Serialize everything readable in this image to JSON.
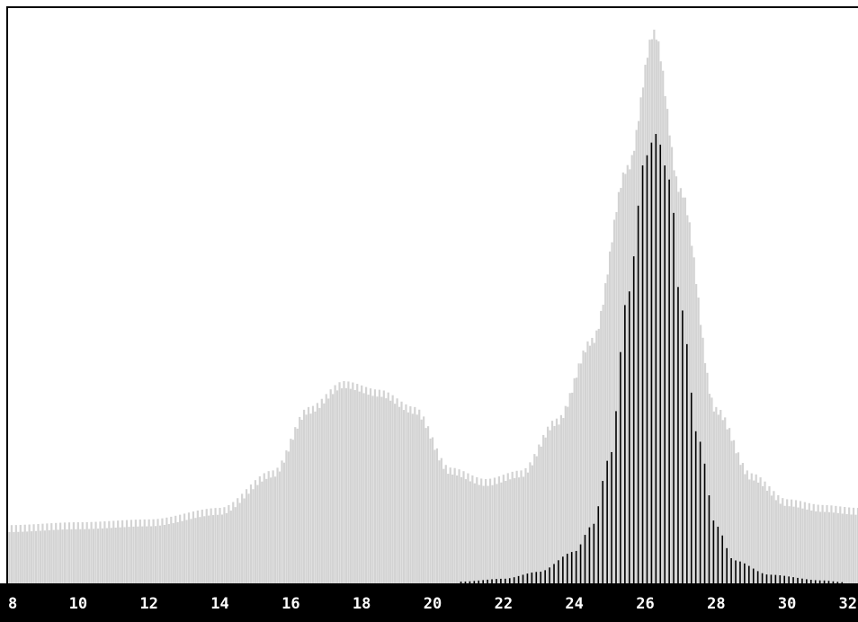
{
  "chart_data": {
    "type": "bar",
    "title": "",
    "xlabel": "",
    "ylabel": "",
    "x_ticks": [
      "8",
      "10",
      "12",
      "14",
      "16",
      "18",
      "20",
      "22",
      "24",
      "26",
      "28",
      "30",
      "32"
    ],
    "xlim": [
      8,
      32
    ],
    "ylim": [
      0,
      1
    ],
    "grid": false,
    "legend": "none",
    "colors": {
      "background": "#ffffff",
      "axis_strip": "#000000",
      "tick_text": "#ffffff",
      "series_all": "#d3d3d3",
      "series_selected": "#000000"
    },
    "series": [
      {
        "id": "all",
        "peaks": [
          {
            "x": 8.0,
            "y": 0.095
          },
          {
            "x": 10.0,
            "y": 0.1
          },
          {
            "x": 12.0,
            "y": 0.105
          },
          {
            "x": 14.0,
            "y": 0.125
          },
          {
            "x": 15.5,
            "y": 0.19
          },
          {
            "x": 16.5,
            "y": 0.3
          },
          {
            "x": 17.5,
            "y": 0.345
          },
          {
            "x": 18.5,
            "y": 0.33
          },
          {
            "x": 19.5,
            "y": 0.3
          },
          {
            "x": 20.5,
            "y": 0.195
          },
          {
            "x": 21.5,
            "y": 0.175
          },
          {
            "x": 22.5,
            "y": 0.19
          },
          {
            "x": 23.5,
            "y": 0.28
          },
          {
            "x": 24.5,
            "y": 0.42
          },
          {
            "x": 25.5,
            "y": 0.72
          },
          {
            "x": 26.25,
            "y": 0.955
          },
          {
            "x": 27.0,
            "y": 0.68
          },
          {
            "x": 28.0,
            "y": 0.3
          },
          {
            "x": 29.0,
            "y": 0.185
          },
          {
            "x": 30.0,
            "y": 0.14
          },
          {
            "x": 31.0,
            "y": 0.13
          },
          {
            "x": 32.0,
            "y": 0.125
          }
        ]
      },
      {
        "id": "selected",
        "peaks": [
          {
            "x": 20.8,
            "y": 0.003
          },
          {
            "x": 22.0,
            "y": 0.008
          },
          {
            "x": 23.0,
            "y": 0.02
          },
          {
            "x": 24.0,
            "y": 0.055
          },
          {
            "x": 24.5,
            "y": 0.1
          },
          {
            "x": 25.0,
            "y": 0.22
          },
          {
            "x": 25.5,
            "y": 0.5
          },
          {
            "x": 26.0,
            "y": 0.74
          },
          {
            "x": 26.3,
            "y": 0.78
          },
          {
            "x": 26.7,
            "y": 0.7
          },
          {
            "x": 27.0,
            "y": 0.48
          },
          {
            "x": 27.5,
            "y": 0.25
          },
          {
            "x": 28.0,
            "y": 0.1
          },
          {
            "x": 28.5,
            "y": 0.04
          },
          {
            "x": 29.5,
            "y": 0.015
          },
          {
            "x": 31.0,
            "y": 0.005
          },
          {
            "x": 31.6,
            "y": 0.002
          }
        ]
      }
    ]
  }
}
